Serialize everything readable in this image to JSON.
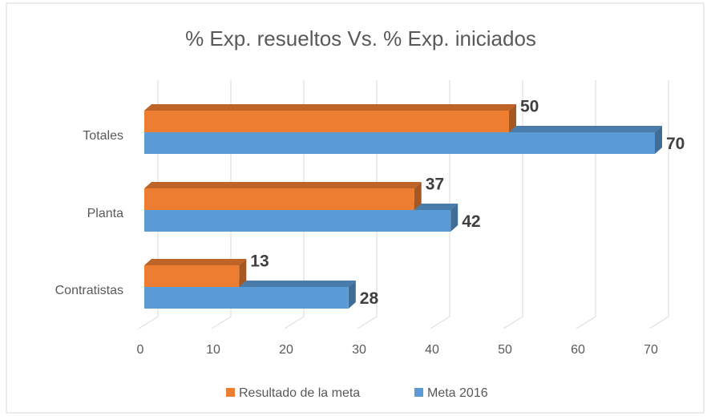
{
  "chart_data": {
    "type": "bar3d",
    "orientation": "horizontal",
    "title": "% Exp. resueltos Vs. % Exp. iniciados",
    "categories": [
      "Contratistas",
      "Planta",
      "Totales"
    ],
    "series": [
      {
        "name": "Resultado de la meta",
        "color": "#ED7D31",
        "values": [
          13,
          37,
          50
        ]
      },
      {
        "name": "Meta 2016",
        "color": "#5B9BD5",
        "values": [
          28,
          42,
          70
        ]
      }
    ],
    "xlim": [
      0,
      70
    ],
    "xticks": [
      0,
      10,
      20,
      30,
      40,
      50,
      60,
      70
    ],
    "grid": true,
    "legend": "bottom"
  }
}
